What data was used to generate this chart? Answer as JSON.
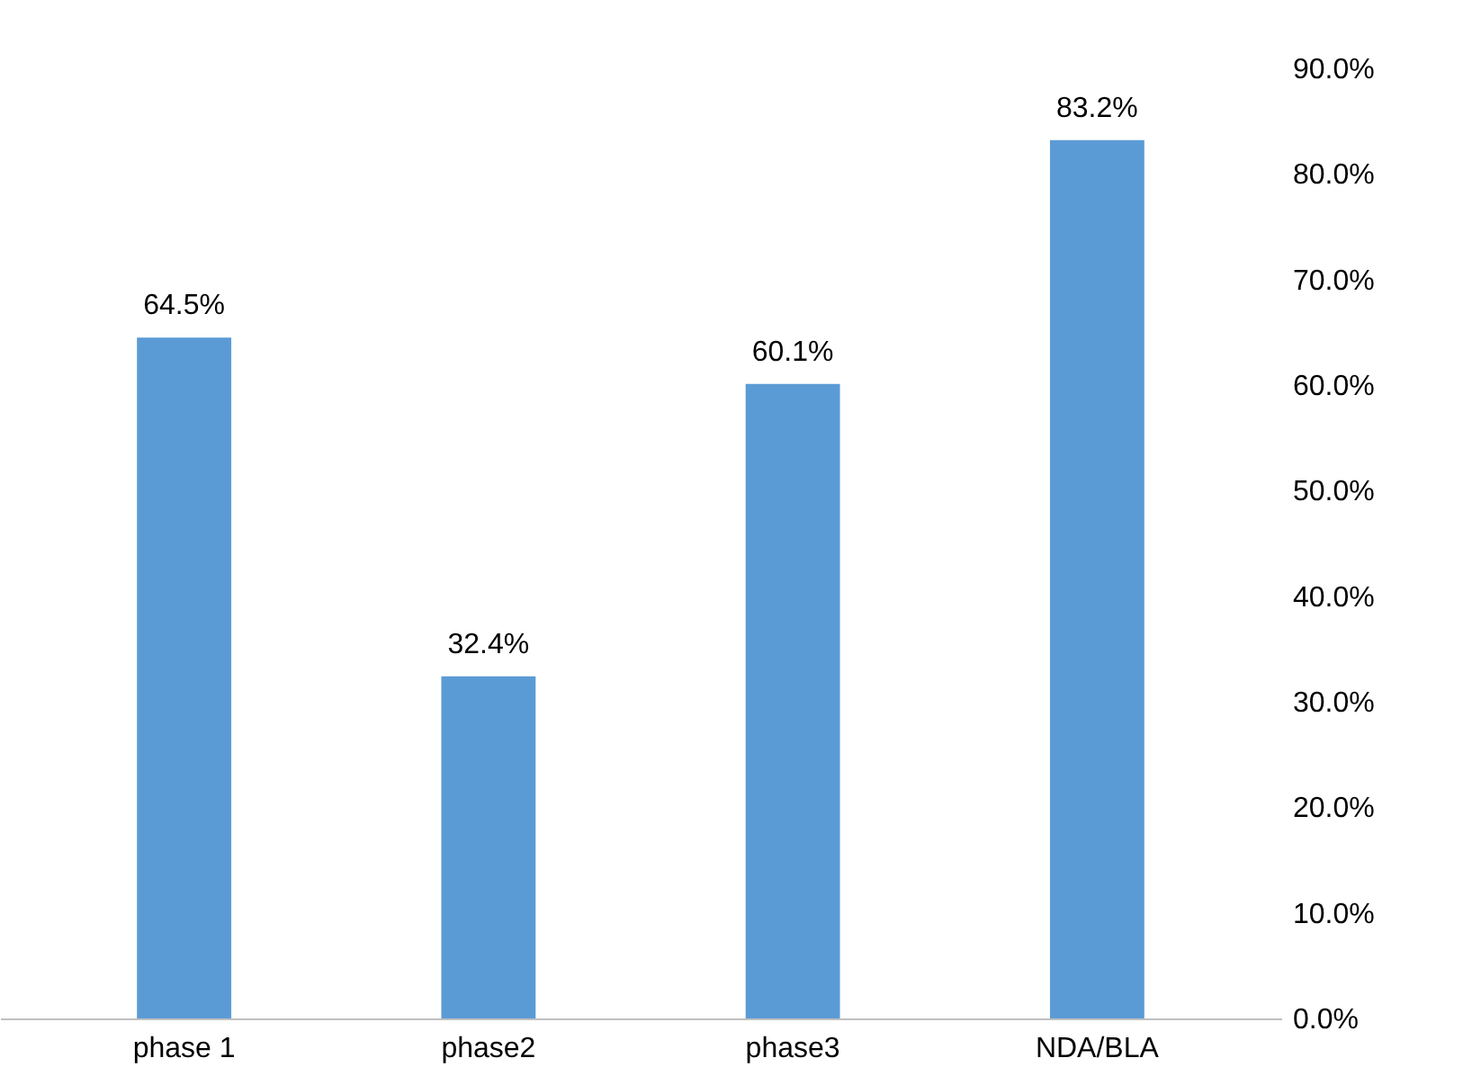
{
  "chart_data": {
    "type": "bar",
    "categories": [
      "phase 1",
      "phase2",
      "phase3",
      "NDA/BLA"
    ],
    "values": [
      64.5,
      32.4,
      60.1,
      83.2
    ],
    "value_labels": [
      "64.5%",
      "32.4%",
      "60.1%",
      "83.2%"
    ],
    "color": "#5b9bd5",
    "ylim": [
      0,
      90
    ],
    "yticks": [
      {
        "value": 0,
        "label": "0.0%"
      },
      {
        "value": 10,
        "label": "10.0%"
      },
      {
        "value": 20,
        "label": "20.0%"
      },
      {
        "value": 30,
        "label": "30.0%"
      },
      {
        "value": 40,
        "label": "40.0%"
      },
      {
        "value": 50,
        "label": "50.0%"
      },
      {
        "value": 60,
        "label": "60.0%"
      },
      {
        "value": 70,
        "label": "70.0%"
      },
      {
        "value": 80,
        "label": "80.0%"
      },
      {
        "value": 90,
        "label": "90.0%"
      }
    ],
    "grid": false
  }
}
